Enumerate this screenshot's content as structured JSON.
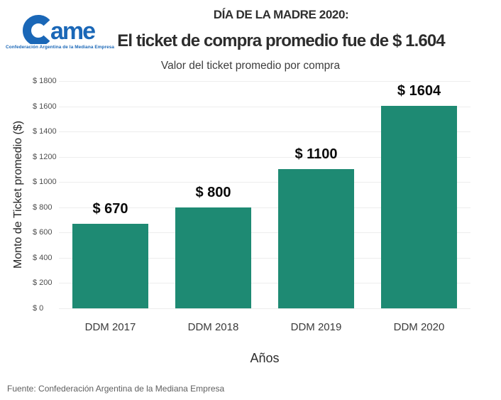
{
  "header": {
    "logo": {
      "text": "Came",
      "tagline": "Confederación Argentina de la Mediana Empresa",
      "color": "#1a67b7"
    },
    "kicker": "DÍA DE LA MADRE 2020:",
    "title": "El ticket de compra promedio fue de $ 1.604"
  },
  "chart_data": {
    "type": "bar",
    "title": "Valor del ticket promedio por compra",
    "categories": [
      "DDM 2017",
      "DDM 2018",
      "DDM 2019",
      "DDM 2020"
    ],
    "values": [
      670,
      800,
      1100,
      1604
    ],
    "value_labels": [
      "$ 670",
      "$ 800",
      "$ 1100",
      "$ 1604"
    ],
    "xlabel": "Años",
    "ylabel": "Monto de Ticket promedio ($)",
    "ylim": [
      0,
      1800
    ],
    "yticks": [
      {
        "value": 0,
        "label": "$ 0"
      },
      {
        "value": 200,
        "label": "$ 200"
      },
      {
        "value": 400,
        "label": "$ 400"
      },
      {
        "value": 600,
        "label": "$ 600"
      },
      {
        "value": 800,
        "label": "$ 800"
      },
      {
        "value": 1000,
        "label": "$ 1000"
      },
      {
        "value": 1200,
        "label": "$ 1200"
      },
      {
        "value": 1400,
        "label": "$ 1400"
      },
      {
        "value": 1600,
        "label": "$ 1600"
      },
      {
        "value": 1800,
        "label": "$ 1800"
      }
    ],
    "bar_color": "#1e8a73",
    "grid": true,
    "legend": false
  },
  "footer": {
    "source": "Fuente: Confederación Argentina de la Mediana Empresa"
  }
}
